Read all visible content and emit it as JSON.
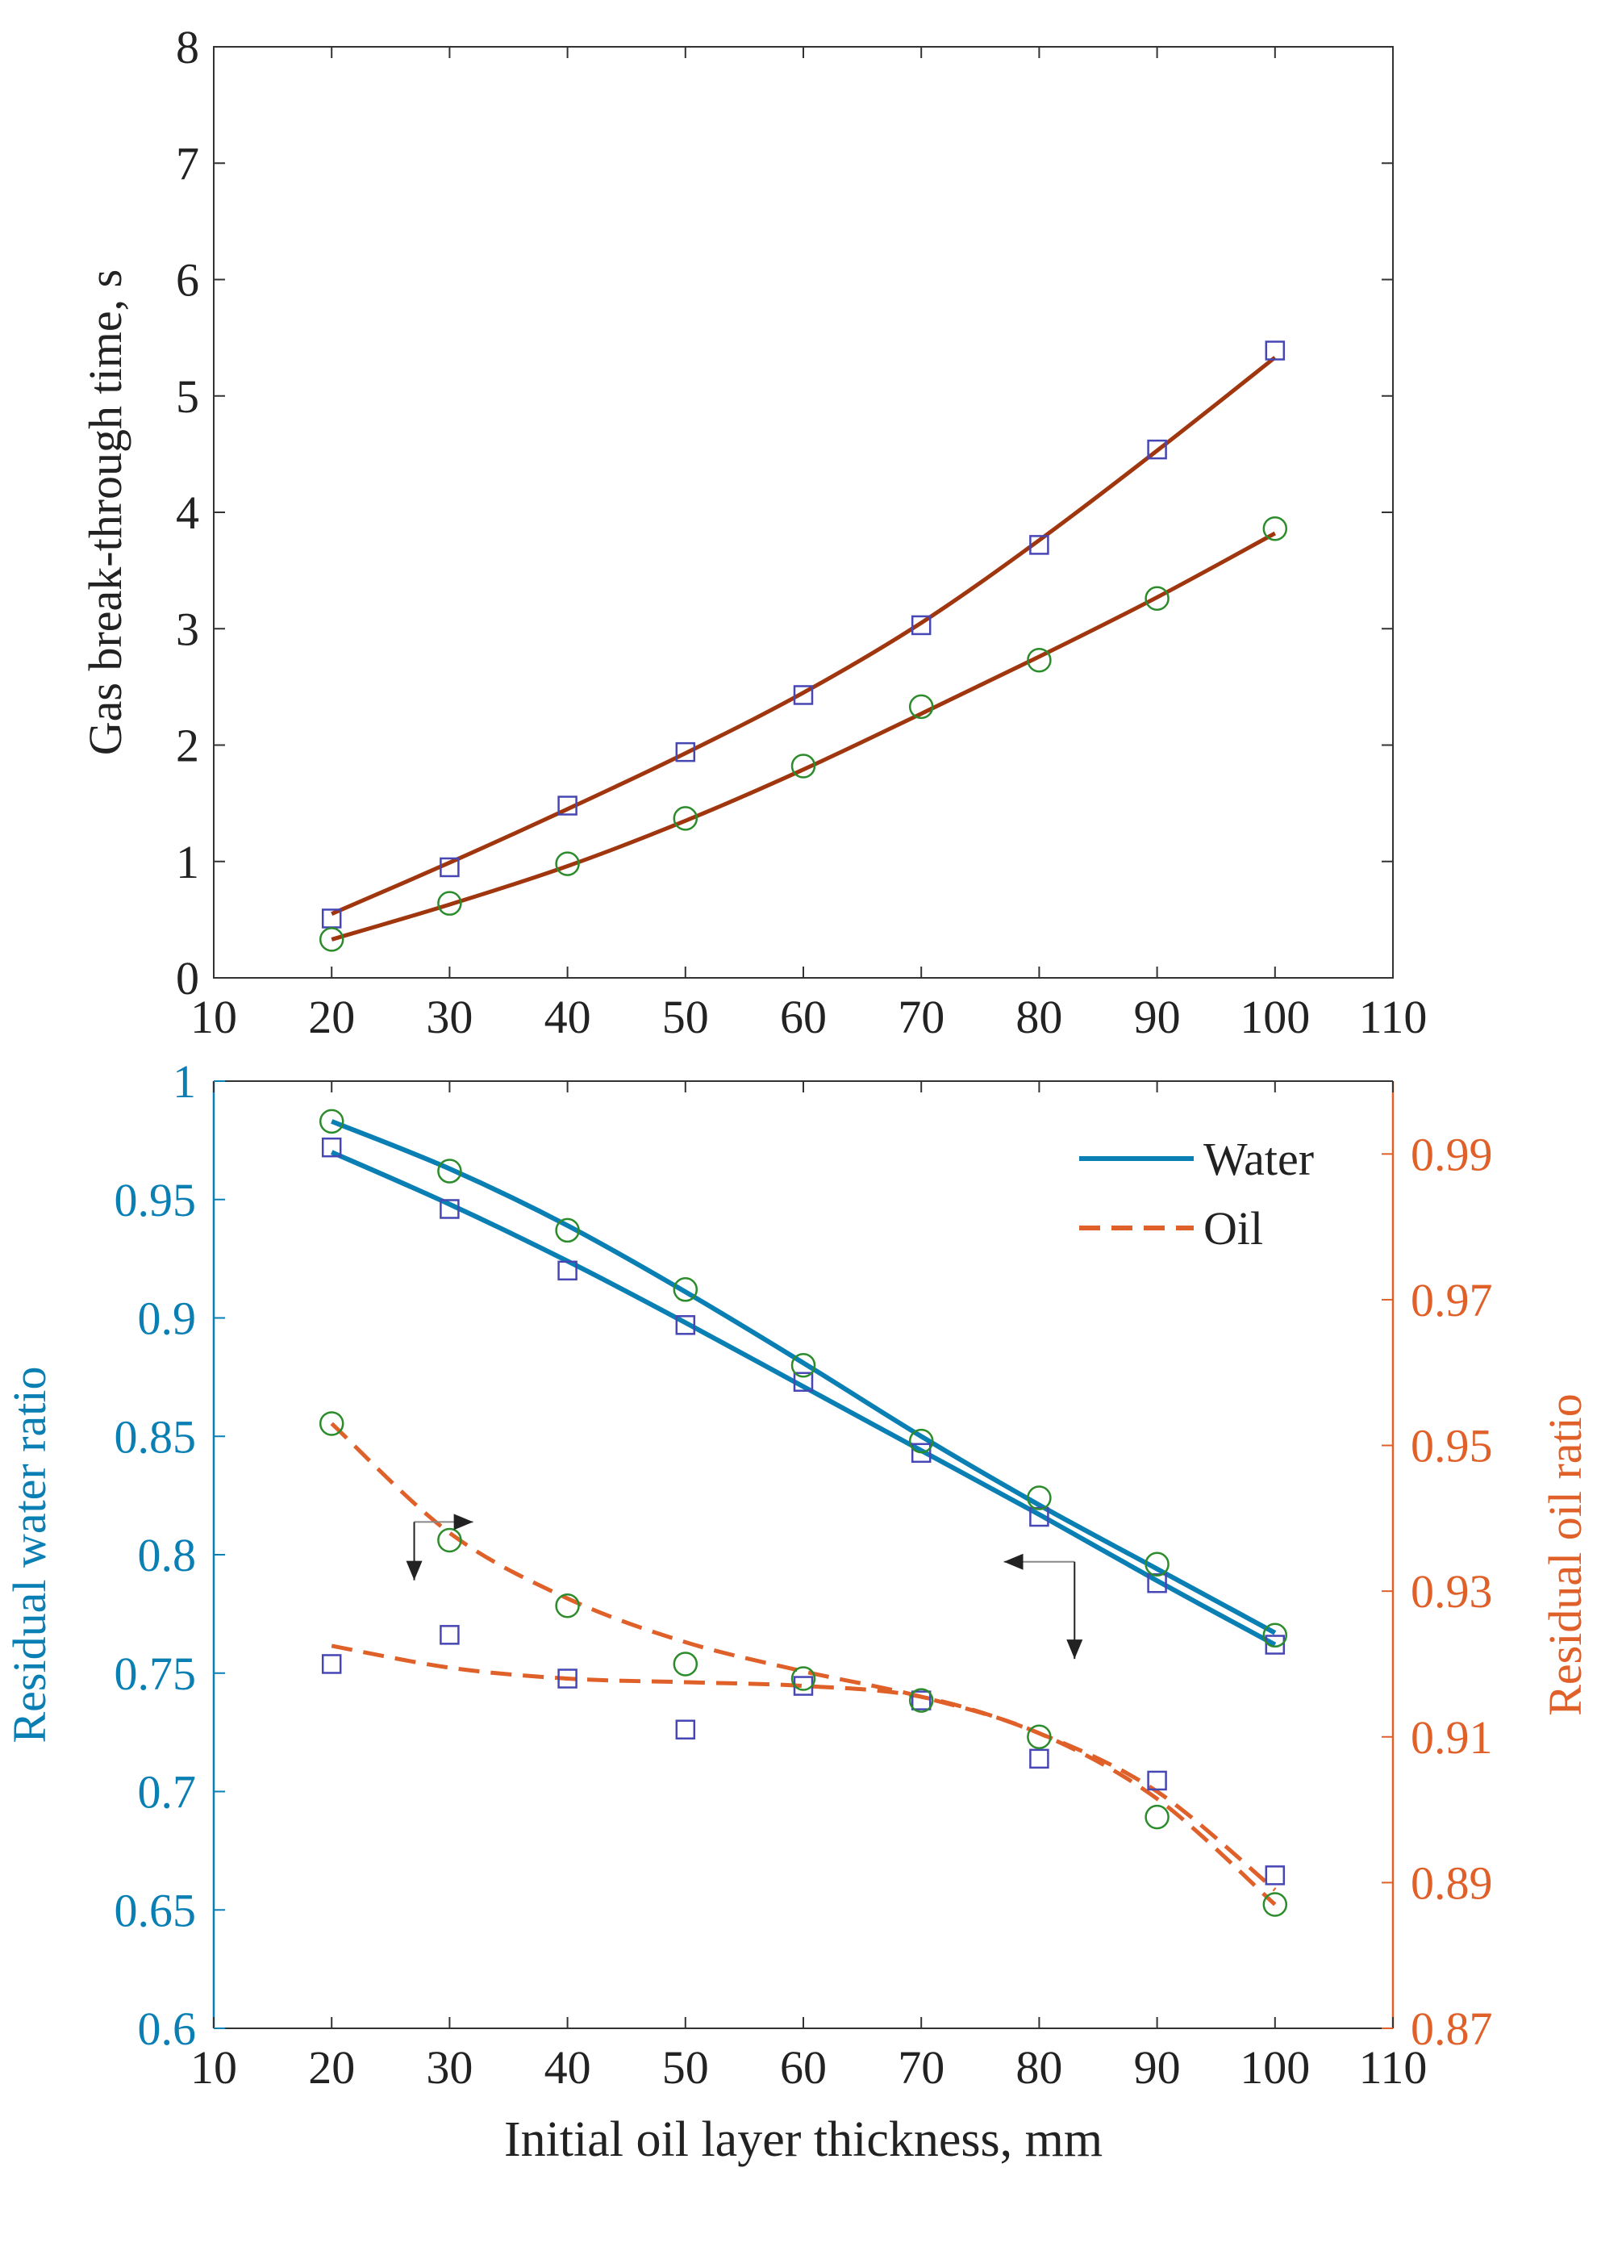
{
  "colors": {
    "axis": "#333333",
    "fit_top": "#a0360e",
    "square": "#4646b4",
    "circle": "#2c8c2c",
    "water": "#0a7fb4",
    "oil": "#e0602a",
    "arrow": "#222222",
    "arrow_light": "#888888"
  },
  "chart_data": [
    {
      "type": "scatter",
      "title": "",
      "xlabel": "",
      "ylabel": "Gas break-through time, s",
      "xlim": [
        10,
        110
      ],
      "ylim": [
        0,
        8
      ],
      "x_ticks": [
        10,
        20,
        30,
        40,
        50,
        60,
        70,
        80,
        90,
        100,
        110
      ],
      "y_ticks": [
        0,
        1,
        2,
        3,
        4,
        5,
        6,
        7,
        8
      ],
      "x": [
        20,
        30,
        40,
        50,
        60,
        70,
        80,
        90,
        100
      ],
      "series": [
        {
          "name": "squares",
          "marker": "square",
          "values": [
            0.51,
            0.95,
            1.48,
            1.94,
            2.43,
            3.03,
            3.72,
            4.54,
            5.39
          ],
          "fit": [
            0.55,
            0.99,
            1.45,
            1.93,
            2.45,
            3.05,
            3.76,
            4.53,
            5.33
          ]
        },
        {
          "name": "circles",
          "marker": "circle",
          "values": [
            0.33,
            0.64,
            0.98,
            1.37,
            1.82,
            2.33,
            2.73,
            3.26,
            3.86
          ],
          "fit": [
            0.33,
            0.63,
            0.96,
            1.35,
            1.79,
            2.27,
            2.76,
            3.27,
            3.82
          ]
        }
      ]
    },
    {
      "type": "scatter",
      "title": "",
      "xlabel": "Initial oil layer thickness, mm",
      "ylabel_left": "Residual water ratio",
      "ylabel_right": "Residual oil ratio",
      "xlim": [
        10,
        110
      ],
      "ylim_left": [
        0.6,
        1.0
      ],
      "ylim_right": [
        0.87,
        1.0
      ],
      "x_ticks": [
        10,
        20,
        30,
        40,
        50,
        60,
        70,
        80,
        90,
        100,
        110
      ],
      "y_ticks_left": [
        "0.6",
        "0.65",
        "0.7",
        "0.75",
        "0.8",
        "0.85",
        "0.9",
        "0.95",
        "1"
      ],
      "y_ticks_right": [
        "0.87",
        "0.89",
        "0.91",
        "0.93",
        "0.95",
        "0.97",
        "0.99"
      ],
      "legend": {
        "position": "top-right",
        "entries": [
          {
            "label": "Water",
            "style": "solid"
          },
          {
            "label": "Oil",
            "style": "dashed"
          }
        ]
      },
      "x": [
        20,
        30,
        40,
        50,
        60,
        70,
        80,
        90,
        100
      ],
      "series": [
        {
          "name": "Water (squares)",
          "axis": "left",
          "marker": "square",
          "values": [
            0.972,
            0.946,
            0.92,
            0.897,
            0.873,
            0.843,
            0.816,
            0.788,
            0.762
          ],
          "fit": [
            0.97,
            0.948,
            0.924,
            0.898,
            0.871,
            0.844,
            0.817,
            0.789,
            0.762
          ]
        },
        {
          "name": "Water (circles)",
          "axis": "left",
          "marker": "circle",
          "values": [
            0.983,
            0.962,
            0.937,
            0.912,
            0.88,
            0.848,
            0.824,
            0.796,
            0.766
          ],
          "fit": [
            0.983,
            0.963,
            0.939,
            0.911,
            0.881,
            0.85,
            0.821,
            0.794,
            0.767
          ]
        },
        {
          "name": "Oil (squares)",
          "axis": "right",
          "marker": "square",
          "values": [
            0.92,
            0.924,
            0.918,
            0.911,
            0.917,
            0.915,
            0.907,
            0.904,
            0.891
          ],
          "fit": [
            0.9225,
            0.9195,
            0.918,
            0.9175,
            0.917,
            0.9155,
            0.9105,
            0.9025,
            0.889
          ]
        },
        {
          "name": "Oil (circles)",
          "axis": "right",
          "marker": "circle",
          "values": [
            0.953,
            0.937,
            0.928,
            0.92,
            0.918,
            0.915,
            0.91,
            0.899,
            0.887
          ],
          "fit": [
            0.953,
            0.938,
            0.929,
            0.923,
            0.919,
            0.9155,
            0.9105,
            0.9015,
            0.887
          ]
        }
      ],
      "arrows": [
        {
          "corner": [
            27,
            0.9395
          ],
          "to": [
            32,
            0.9395
          ],
          "axis": "right"
        },
        {
          "corner": [
            27,
            0.9395
          ],
          "to": [
            27,
            0.9315
          ],
          "axis": "right"
        },
        {
          "corner": [
            83,
            0.797
          ],
          "to": [
            77,
            0.797
          ],
          "axis": "left"
        },
        {
          "corner": [
            83,
            0.797
          ],
          "to": [
            83,
            0.756
          ],
          "axis": "left"
        }
      ]
    }
  ]
}
